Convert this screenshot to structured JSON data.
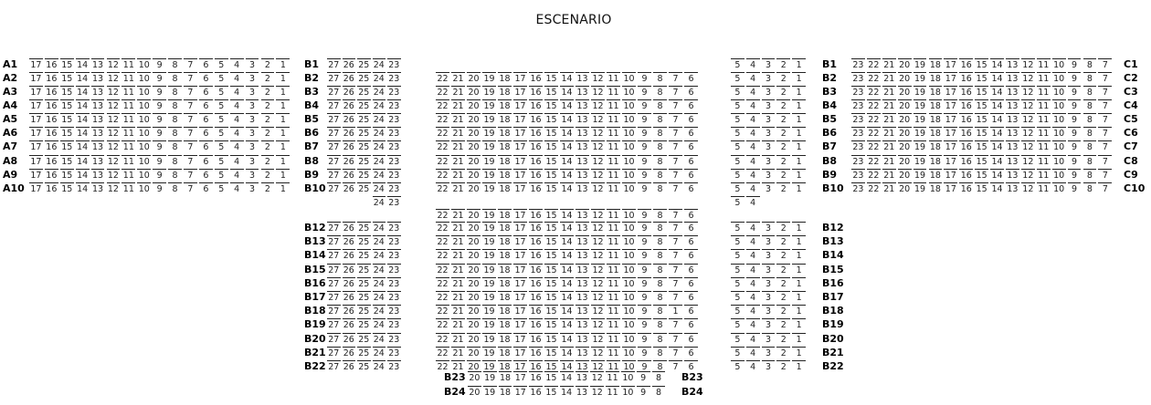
{
  "stage_label": "ESCENARIO",
  "sections": [
    {
      "id": "A",
      "seats": [
        17,
        16,
        15,
        14,
        13,
        12,
        11,
        10,
        9,
        8,
        7,
        6,
        5,
        4,
        3,
        2,
        1
      ],
      "rows": [
        {
          "label_left": "A1"
        },
        {
          "label_left": "A2"
        },
        {
          "label_left": "A3"
        },
        {
          "label_left": "A4"
        },
        {
          "label_left": "A5"
        },
        {
          "label_left": "A6"
        },
        {
          "label_left": "A7"
        },
        {
          "label_left": "A8"
        },
        {
          "label_left": "A9"
        },
        {
          "label_left": "A10"
        }
      ]
    },
    {
      "id": "B-left",
      "seats": [
        27,
        26,
        25,
        24,
        23
      ],
      "rows": [
        {
          "label_left": "B1"
        },
        {
          "label_left": "B2"
        },
        {
          "label_left": "B3"
        },
        {
          "label_left": "B4"
        },
        {
          "label_left": "B5"
        },
        {
          "label_left": "B6"
        },
        {
          "label_left": "B7"
        },
        {
          "label_left": "B8"
        },
        {
          "label_left": "B9"
        },
        {
          "label_left": "B10"
        },
        {
          "seats": [
            24,
            23
          ]
        },
        {
          "label_left": "B12"
        },
        {
          "label_left": "B13"
        },
        {
          "label_left": "B14"
        },
        {
          "label_left": "B15"
        },
        {
          "label_left": "B16"
        },
        {
          "label_left": "B17"
        },
        {
          "label_left": "B18"
        },
        {
          "label_left": "B19"
        },
        {
          "label_left": "B20"
        },
        {
          "label_left": "B21"
        },
        {
          "label_left": "B22"
        }
      ]
    },
    {
      "id": "B-center",
      "seats": [
        22,
        21,
        20,
        19,
        18,
        17,
        16,
        15,
        14,
        13,
        12,
        11,
        10,
        9,
        8,
        7,
        6
      ],
      "rows": [
        {},
        {},
        {},
        {},
        {},
        {},
        {},
        {},
        {},
        {},
        {},
        {},
        {},
        {},
        {},
        {},
        {
          "seats": [
            22,
            21,
            20,
            19,
            18,
            17,
            16,
            15,
            14,
            13,
            12,
            11,
            10,
            9,
            8,
            1,
            6
          ]
        },
        {},
        {},
        {},
        {}
      ]
    },
    {
      "id": "B-back",
      "seats": [
        20,
        19,
        18,
        17,
        16,
        15,
        14,
        13,
        12,
        11,
        10,
        9,
        8
      ],
      "rows": [
        {
          "label_left": "B23",
          "label_right": "B23"
        },
        {
          "label_left": "B24",
          "label_right": "B24"
        }
      ]
    },
    {
      "id": "B-right",
      "seats": [
        5,
        4,
        3,
        2,
        1
      ],
      "rows": [
        {
          "label_right": "B1"
        },
        {
          "label_right": "B2"
        },
        {
          "label_right": "B3"
        },
        {
          "label_right": "B4"
        },
        {
          "label_right": "B5"
        },
        {
          "label_right": "B6"
        },
        {
          "label_right": "B7"
        },
        {
          "label_right": "B8"
        },
        {
          "label_right": "B9"
        },
        {
          "label_right": "B10"
        },
        {
          "seats": [
            5,
            4
          ]
        },
        {
          "label_right": "B12"
        },
        {
          "label_right": "B13"
        },
        {
          "label_right": "B14"
        },
        {
          "label_right": "B15"
        },
        {
          "label_right": "B16"
        },
        {
          "label_right": "B17"
        },
        {
          "label_right": "B18"
        },
        {
          "label_right": "B19"
        },
        {
          "label_right": "B20"
        },
        {
          "label_right": "B21"
        },
        {
          "label_right": "B22"
        }
      ]
    },
    {
      "id": "C",
      "seats": [
        23,
        22,
        21,
        20,
        19,
        18,
        17,
        16,
        15,
        14,
        13,
        12,
        11,
        10,
        9,
        8,
        7
      ],
      "rows": [
        {
          "label_right": "C1"
        },
        {
          "label_right": "C2"
        },
        {
          "label_right": "C3"
        },
        {
          "label_right": "C4"
        },
        {
          "label_right": "C5"
        },
        {
          "label_right": "C6"
        },
        {
          "label_right": "C7"
        },
        {
          "label_right": "C8"
        },
        {
          "label_right": "C9"
        },
        {
          "label_right": "C10"
        }
      ]
    }
  ]
}
